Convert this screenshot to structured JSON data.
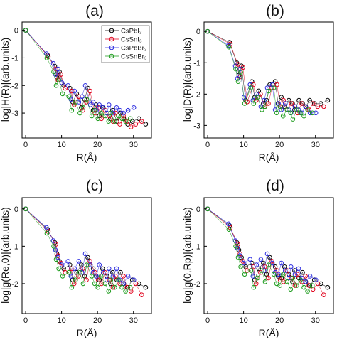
{
  "legend": {
    "placement": "top-right of panel (a)",
    "entries": [
      {
        "name": "CsPbI₃",
        "color": "#000000"
      },
      {
        "name": "CsSnI₃",
        "color": "#e0001b"
      },
      {
        "name": "CsPbBr₃",
        "color": "#2a2adf"
      },
      {
        "name": "CsSnBr₃",
        "color": "#1a9a1a"
      }
    ]
  },
  "chart_data": [
    {
      "type": "scatter",
      "panel": "(a)",
      "xlabel": "R(Å)",
      "ylabel": "log|H(R)|(arb.units)",
      "xlim": [
        -1,
        35
      ],
      "ylim": [
        -3.9,
        0.3
      ],
      "xticks": [
        0,
        10,
        20,
        30
      ],
      "yticks": [
        0,
        -1,
        -2,
        -3
      ],
      "grid": false,
      "series": [
        {
          "name": "CsPbI₃",
          "color": "#000000",
          "x": [
            0,
            6.1,
            8.1,
            8.7,
            9.4,
            10.6,
            12.3,
            13.1,
            14.2,
            15.5,
            16.4,
            17.3,
            18.8,
            19.6,
            20.5,
            21.4,
            22.6,
            23.6,
            24.2,
            25.4,
            26.4,
            27.3,
            28.4,
            29.7,
            31.5,
            33.4
          ],
          "y": [
            0,
            -0.9,
            -1.3,
            -1.7,
            -1.5,
            -2.0,
            -2.1,
            -2.6,
            -2.3,
            -2.8,
            -2.5,
            -2.1,
            -2.9,
            -2.7,
            -3.1,
            -2.8,
            -3.0,
            -3.2,
            -2.9,
            -3.3,
            -3.0,
            -3.2,
            -3.4,
            -3.3,
            -3.2,
            -3.4
          ]
        },
        {
          "name": "CsSnI₃",
          "color": "#e0001b",
          "x": [
            0,
            6.3,
            8.4,
            9.0,
            9.8,
            11.0,
            12.7,
            13.5,
            14.7,
            15.9,
            16.9,
            17.9,
            19.3,
            20.2,
            21.1,
            22.1,
            23.3,
            24.3,
            25.0,
            26.2,
            27.2,
            28.2,
            29.3,
            30.6,
            32.3
          ],
          "y": [
            0,
            -0.95,
            -1.4,
            -1.8,
            -1.6,
            -2.1,
            -2.2,
            -2.7,
            -2.4,
            -2.9,
            -2.6,
            -2.2,
            -3.0,
            -2.8,
            -3.2,
            -2.9,
            -3.1,
            -3.3,
            -3.0,
            -3.4,
            -3.1,
            -3.3,
            -3.5,
            -3.4,
            -3.3
          ]
        },
        {
          "name": "CsPbBr₃",
          "color": "#2a2adf",
          "x": [
            0,
            5.8,
            7.7,
            8.3,
            9.0,
            10.1,
            11.8,
            12.6,
            13.6,
            14.8,
            15.7,
            16.6,
            18.0,
            18.8,
            19.7,
            20.5,
            21.6,
            22.6,
            23.2,
            24.3,
            25.3,
            26.2,
            27.2,
            28.5,
            30.1
          ],
          "y": [
            0,
            -0.85,
            -1.2,
            -1.6,
            -1.4,
            -1.9,
            -2.0,
            -2.5,
            -2.2,
            -2.6,
            -2.4,
            -2.0,
            -2.7,
            -2.6,
            -2.9,
            -2.7,
            -2.8,
            -3.0,
            -2.7,
            -3.0,
            -2.8,
            -2.9,
            -3.0,
            -2.9,
            -2.8
          ]
        },
        {
          "name": "CsSnBr₃",
          "color": "#1a9a1a",
          "x": [
            0,
            5.9,
            7.8,
            8.5,
            9.2,
            10.3,
            12.0,
            12.8,
            13.9,
            15.1,
            16.0,
            17.0,
            18.4,
            19.2,
            20.1,
            21.0,
            22.1,
            23.1,
            23.7,
            24.8,
            25.8,
            26.8,
            27.8,
            29.1
          ],
          "y": [
            0,
            -1.0,
            -1.5,
            -2.0,
            -1.8,
            -2.3,
            -2.4,
            -2.9,
            -2.6,
            -3.0,
            -2.8,
            -2.5,
            -3.1,
            -2.9,
            -3.2,
            -3.0,
            -3.1,
            -3.3,
            -3.0,
            -3.3,
            -3.1,
            -3.2,
            -3.3,
            -3.2
          ]
        }
      ]
    },
    {
      "type": "scatter",
      "panel": "(b)",
      "xlabel": "R(Å)",
      "ylabel": "log|D(R)|(arb.units)",
      "xlim": [
        -1,
        35
      ],
      "ylim": [
        -3.4,
        0.3
      ],
      "xticks": [
        0,
        10,
        20,
        30
      ],
      "yticks": [
        0,
        -1,
        -2,
        -3
      ],
      "grid": false,
      "series": [
        {
          "name": "CsPbI₃",
          "color": "#000000",
          "x": [
            0,
            6.1,
            8.1,
            8.7,
            9.4,
            10.6,
            12.3,
            13.1,
            14.2,
            15.5,
            16.4,
            17.3,
            18.8,
            19.6,
            20.5,
            21.4,
            22.6,
            23.6,
            24.2,
            25.4,
            26.4,
            27.3,
            28.4,
            29.7,
            31.5,
            33.4
          ],
          "y": [
            0,
            -0.35,
            -1.0,
            -1.4,
            -1.1,
            -2.2,
            -1.6,
            -2.1,
            -1.9,
            -2.3,
            -2.2,
            -1.7,
            -1.6,
            -2.3,
            -2.1,
            -2.4,
            -2.2,
            -2.3,
            -2.5,
            -2.2,
            -2.3,
            -2.4,
            -2.2,
            -2.3,
            -2.3,
            -2.2
          ]
        },
        {
          "name": "CsSnI₃",
          "color": "#e0001b",
          "x": [
            0,
            6.3,
            8.4,
            9.0,
            9.8,
            11.0,
            12.7,
            13.5,
            14.7,
            15.9,
            16.9,
            17.9,
            19.3,
            20.2,
            21.1,
            22.1,
            23.3,
            24.3,
            25.0,
            26.2,
            27.2,
            28.2,
            29.3,
            30.6,
            32.3
          ],
          "y": [
            0,
            -0.4,
            -1.05,
            -1.45,
            -1.15,
            -2.25,
            -1.7,
            -2.2,
            -2.0,
            -2.4,
            -2.3,
            -1.8,
            -1.7,
            -2.4,
            -2.2,
            -2.5,
            -2.3,
            -2.4,
            -2.6,
            -2.3,
            -2.4,
            -2.5,
            -2.3,
            -2.4,
            -2.4
          ]
        },
        {
          "name": "CsPbBr₃",
          "color": "#2a2adf",
          "x": [
            0,
            5.8,
            7.7,
            8.3,
            9.0,
            10.1,
            11.8,
            12.6,
            13.6,
            14.8,
            15.7,
            16.6,
            18.0,
            18.8,
            19.7,
            20.5,
            21.6,
            22.6,
            23.2,
            24.3,
            25.3,
            26.2,
            27.2,
            28.5,
            30.1
          ],
          "y": [
            0,
            -0.45,
            -1.1,
            -1.5,
            -1.2,
            -2.1,
            -1.7,
            -2.2,
            -2.0,
            -2.4,
            -2.2,
            -1.8,
            -1.7,
            -2.5,
            -2.3,
            -2.5,
            -2.3,
            -2.5,
            -2.6,
            -2.4,
            -2.5,
            -2.6,
            -2.4,
            -2.6,
            -2.6
          ]
        },
        {
          "name": "CsSnBr₃",
          "color": "#1a9a1a",
          "x": [
            0,
            5.9,
            7.8,
            8.5,
            9.2,
            10.3,
            12.0,
            12.8,
            13.9,
            15.1,
            16.0,
            17.0,
            18.4,
            19.2,
            20.1,
            21.0,
            22.1,
            23.1,
            23.7,
            24.8,
            25.8,
            26.8,
            27.8,
            29.1
          ],
          "y": [
            0,
            -0.5,
            -1.2,
            -1.6,
            -1.3,
            -2.3,
            -1.8,
            -2.3,
            -2.1,
            -2.5,
            -2.4,
            -1.9,
            -1.8,
            -2.6,
            -2.4,
            -2.7,
            -2.5,
            -2.6,
            -2.8,
            -2.5,
            -2.6,
            -2.7,
            -2.5,
            -2.6
          ]
        }
      ]
    },
    {
      "type": "scatter",
      "panel": "(c)",
      "xlabel": "R(Å)",
      "ylabel": "log|g(Re,0)|(arb.units)",
      "xlim": [
        -1,
        35
      ],
      "ylim": [
        -2.8,
        0.3
      ],
      "xticks": [
        0,
        10,
        20,
        30
      ],
      "yticks": [
        0,
        -1,
        -2
      ],
      "grid": false,
      "series": [
        {
          "name": "CsPbI₃",
          "color": "#000000",
          "x": [
            0,
            6.1,
            8.1,
            8.7,
            9.4,
            10.6,
            12.3,
            13.1,
            14.2,
            15.5,
            16.4,
            17.3,
            18.8,
            19.6,
            20.5,
            21.4,
            22.6,
            23.6,
            24.2,
            25.4,
            26.4,
            27.3,
            28.4,
            29.7,
            31.5,
            33.4
          ],
          "y": [
            0,
            -0.55,
            -0.9,
            -1.2,
            -1.4,
            -1.6,
            -1.5,
            -1.9,
            -1.7,
            -1.5,
            -1.8,
            -1.3,
            -1.6,
            -1.8,
            -1.9,
            -1.6,
            -1.8,
            -2.0,
            -1.7,
            -1.9,
            -1.7,
            -2.0,
            -2.1,
            -1.9,
            -2.0,
            -2.1
          ]
        },
        {
          "name": "CsSnI₃",
          "color": "#e0001b",
          "x": [
            0,
            6.3,
            8.4,
            9.0,
            9.8,
            11.0,
            12.7,
            13.5,
            14.7,
            15.9,
            16.9,
            17.9,
            19.3,
            20.2,
            21.1,
            22.1,
            23.3,
            24.3,
            25.0,
            26.2,
            27.2,
            28.2,
            29.3,
            30.6,
            32.3
          ],
          "y": [
            0,
            -0.6,
            -0.95,
            -1.25,
            -1.45,
            -1.7,
            -1.6,
            -2.0,
            -1.8,
            -1.6,
            -1.9,
            -1.4,
            -1.7,
            -1.9,
            -2.0,
            -1.7,
            -1.9,
            -2.1,
            -1.8,
            -2.0,
            -1.8,
            -2.1,
            -2.2,
            -2.0,
            -2.3
          ]
        },
        {
          "name": "CsPbBr₃",
          "color": "#2a2adf",
          "x": [
            0,
            5.8,
            7.7,
            8.3,
            9.0,
            10.1,
            11.8,
            12.6,
            13.6,
            14.8,
            15.7,
            16.6,
            18.0,
            18.8,
            19.7,
            20.5,
            21.6,
            22.6,
            23.2,
            24.3,
            25.3,
            26.2,
            27.2,
            28.5,
            30.1
          ],
          "y": [
            0,
            -0.5,
            -0.85,
            -1.1,
            -1.3,
            -1.5,
            -1.4,
            -1.8,
            -1.6,
            -1.4,
            -1.7,
            -1.2,
            -1.5,
            -1.7,
            -1.8,
            -1.5,
            -1.7,
            -1.9,
            -1.6,
            -1.8,
            -1.6,
            -1.9,
            -2.0,
            -1.8,
            -1.9
          ]
        },
        {
          "name": "CsSnBr₃",
          "color": "#1a9a1a",
          "x": [
            0,
            5.9,
            7.8,
            8.5,
            9.2,
            10.3,
            12.0,
            12.8,
            13.9,
            15.1,
            16.0,
            17.0,
            18.4,
            19.2,
            20.1,
            21.0,
            22.1,
            23.1,
            23.7,
            24.8,
            25.8,
            26.8,
            27.8,
            29.1
          ],
          "y": [
            0,
            -0.65,
            -1.0,
            -1.35,
            -1.6,
            -1.8,
            -1.7,
            -2.1,
            -1.9,
            -1.7,
            -2.0,
            -1.5,
            -1.8,
            -2.0,
            -2.1,
            -1.8,
            -2.0,
            -2.2,
            -1.9,
            -2.1,
            -1.9,
            -2.1,
            -2.2,
            -2.1
          ]
        }
      ]
    },
    {
      "type": "scatter",
      "panel": "(d)",
      "xlabel": "R(Å)",
      "ylabel": "log|g(0,Rp)|(arb.units)",
      "xlim": [
        -1,
        35
      ],
      "ylim": [
        -2.8,
        0.3
      ],
      "xticks": [
        0,
        10,
        20,
        30
      ],
      "yticks": [
        0,
        -1,
        -2
      ],
      "grid": false,
      "series": [
        {
          "name": "CsPbI₃",
          "color": "#000000",
          "x": [
            0,
            6.1,
            8.1,
            8.7,
            9.4,
            10.6,
            12.3,
            13.1,
            14.2,
            15.5,
            16.4,
            17.3,
            18.8,
            19.6,
            20.5,
            21.4,
            22.6,
            23.6,
            24.2,
            25.4,
            26.4,
            27.3,
            28.4,
            29.7,
            31.5,
            33.4
          ],
          "y": [
            0,
            -0.45,
            -0.9,
            -1.1,
            -1.3,
            -1.55,
            -1.45,
            -1.9,
            -1.6,
            -1.45,
            -1.75,
            -1.3,
            -1.55,
            -1.8,
            -1.85,
            -1.55,
            -1.75,
            -1.95,
            -1.65,
            -1.85,
            -1.7,
            -1.95,
            -2.05,
            -1.9,
            -2.0,
            -2.1
          ]
        },
        {
          "name": "CsSnI₃",
          "color": "#e0001b",
          "x": [
            0,
            6.3,
            8.4,
            9.0,
            9.8,
            11.0,
            12.7,
            13.5,
            14.7,
            15.9,
            16.9,
            17.9,
            19.3,
            20.2,
            21.1,
            22.1,
            23.3,
            24.3,
            25.0,
            26.2,
            27.2,
            28.2,
            29.3,
            30.6,
            32.3
          ],
          "y": [
            0,
            -0.5,
            -0.95,
            -1.2,
            -1.4,
            -1.65,
            -1.55,
            -2.0,
            -1.7,
            -1.55,
            -1.85,
            -1.4,
            -1.65,
            -1.9,
            -1.95,
            -1.65,
            -1.85,
            -2.05,
            -1.75,
            -1.95,
            -1.8,
            -2.05,
            -2.15,
            -2.0,
            -2.3
          ]
        },
        {
          "name": "CsPbBr₃",
          "color": "#2a2adf",
          "x": [
            0,
            5.8,
            7.7,
            8.3,
            9.0,
            10.1,
            11.8,
            12.6,
            13.6,
            14.8,
            15.7,
            16.6,
            18.0,
            18.8,
            19.7,
            20.5,
            21.6,
            22.6,
            23.2,
            24.3,
            25.3,
            26.2,
            27.2,
            28.5,
            30.1
          ],
          "y": [
            0,
            -0.4,
            -0.85,
            -1.05,
            -1.25,
            -1.45,
            -1.35,
            -1.8,
            -1.5,
            -1.35,
            -1.65,
            -1.2,
            -1.45,
            -1.7,
            -1.75,
            -1.45,
            -1.65,
            -1.85,
            -1.55,
            -1.75,
            -1.6,
            -1.85,
            -1.95,
            -1.8,
            -1.9
          ]
        },
        {
          "name": "CsSnBr₃",
          "color": "#1a9a1a",
          "x": [
            0,
            5.9,
            7.8,
            8.5,
            9.2,
            10.3,
            12.0,
            12.8,
            13.9,
            15.1,
            16.0,
            17.0,
            18.4,
            19.2,
            20.1,
            21.0,
            22.1,
            23.1,
            23.7,
            24.8,
            25.8,
            26.8,
            27.8,
            29.1
          ],
          "y": [
            0,
            -0.55,
            -1.0,
            -1.3,
            -1.55,
            -1.75,
            -1.65,
            -2.1,
            -1.85,
            -1.65,
            -1.95,
            -1.5,
            -1.75,
            -2.0,
            -2.05,
            -1.75,
            -1.95,
            -2.15,
            -1.85,
            -2.05,
            -1.9,
            -2.1,
            -2.2,
            -2.05
          ]
        }
      ]
    }
  ]
}
